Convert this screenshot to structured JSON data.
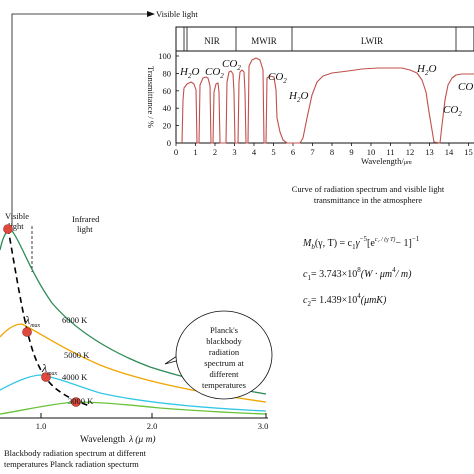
{
  "transmittance_chart": {
    "visible_light_label": "Visible light",
    "band_labels": [
      "NIR",
      "MWIR",
      "LWIR"
    ],
    "ylabel": "Transmittance / %",
    "xlabel": "Wavelength/",
    "xlabel_unit": "μm",
    "yticks": [
      "100",
      "80",
      "60",
      "40",
      "20",
      "0"
    ],
    "xticks": [
      "0",
      "1",
      "2",
      "3",
      "4",
      "5",
      "6",
      "7",
      "8",
      "9",
      "10",
      "11",
      "12",
      "13",
      "14",
      "15"
    ],
    "molecule_labels": [
      {
        "mol": "H",
        "sub": "2",
        "tail": "O"
      },
      {
        "mol": "CO",
        "sub": "2",
        "tail": ""
      },
      {
        "mol": "CO",
        "sub": "2",
        "tail": ""
      },
      {
        "mol": "CO",
        "sub": "2",
        "tail": ""
      },
      {
        "mol": "H",
        "sub": "2",
        "tail": "O"
      },
      {
        "mol": "H",
        "sub": "2",
        "tail": "O"
      },
      {
        "mol": "CO",
        "sub": "",
        "tail": ""
      },
      {
        "mol": "CO",
        "sub": "2",
        "tail": ""
      }
    ],
    "caption_line1": "Curve of radiation spectrum and visible light",
    "caption_line2": "transmittance in the atmosphere",
    "curve_color": "#c0504d"
  },
  "formulas": {
    "f1_lhs": "M",
    "f1_sub": "b",
    "f1_args": "(γ, T) = c",
    "f1_c1": "1",
    "f1_g": "γ",
    "f1_exp": "−5",
    "f1_bracket": "[e",
    "f1_e_exp": "c₂ / (γ T)",
    "f1_tail": "− 1]",
    "f1_tail_exp": "−1",
    "f2_lhs": "c",
    "f2_sub": "1",
    "f2_rhs": "= 3.743×10",
    "f2_exp": "8",
    "f2_unit": "(W · μm",
    "f2_unit_exp": "4",
    "f2_unit_tail": "/ m)",
    "f3_lhs": "c",
    "f3_sub": "2",
    "f3_rhs": "= 1.439×10",
    "f3_exp": "4",
    "f3_unit": "(μmK)"
  },
  "planck_chart": {
    "visible_label_line1": "Visible",
    "visible_label_line2": "light",
    "infrared_label_line1": "Infrared",
    "infrared_label_line2": "light",
    "temperatures": [
      "6000 K",
      "5000 K",
      "4000 K",
      "3000 K"
    ],
    "lambda_max_label": "λ",
    "lambda_max_sub": "max",
    "xticks": [
      "1.0",
      "2.0",
      "3.0"
    ],
    "xlabel": "Wavelength",
    "xlabel_symbol": "λ",
    "xlabel_unit": "(μ m)",
    "bubble_lines": [
      "Planck's",
      "blackbody",
      "radiation",
      "spectrum at",
      "different",
      "temperatures"
    ],
    "caption_line1": "Blackbody radiation spectrum at different",
    "caption_line2": "temperatures Planck radiation specturm",
    "colors": {
      "6000 K": "#2e8b57",
      "5000 K": "#f0a500",
      "4000 K": "#33c7e6",
      "3000 K": "#6ac23a",
      "peak_dot": "#e0483c",
      "peak_curve": "#000000"
    }
  }
}
